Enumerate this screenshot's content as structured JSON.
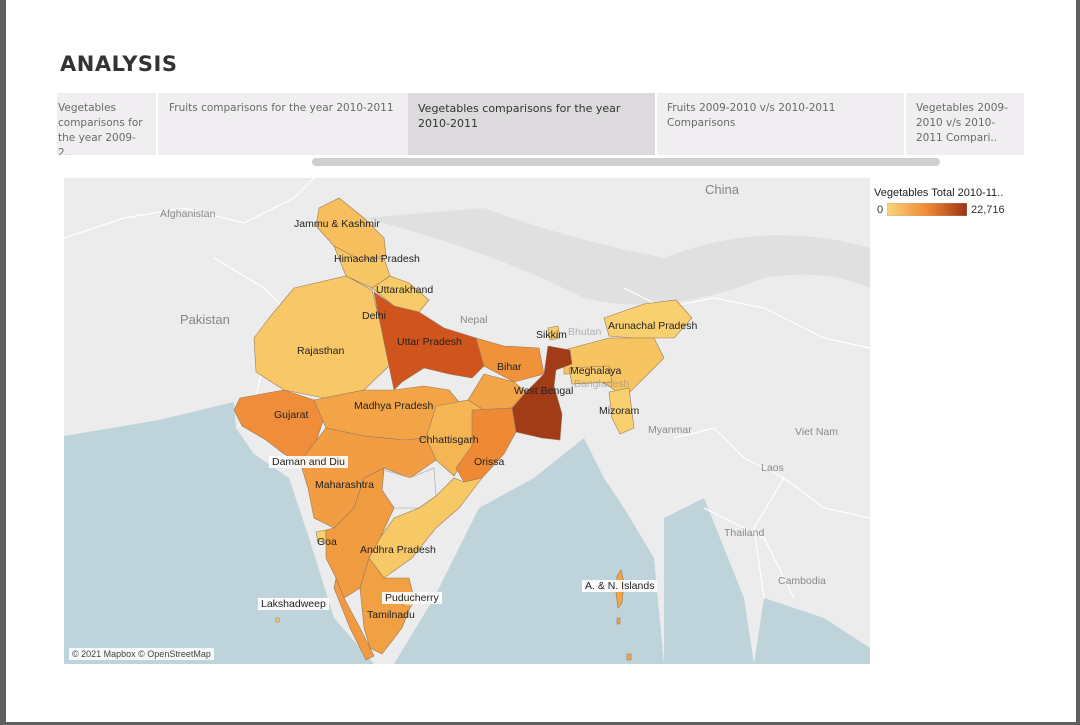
{
  "page": {
    "title": "ANALYSIS"
  },
  "tabs": [
    {
      "label": "Vegetables comparisons for the year 2009-2..",
      "active": false
    },
    {
      "label": "Fruits comparisons for the year 2010-2011",
      "active": false
    },
    {
      "label": "Vegetables comparisons for the year 2010-2011",
      "active": true
    },
    {
      "label": "Fruits 2009-2010 v/s 2010-2011 Comparisons",
      "active": false
    },
    {
      "label": "Vegetables 2009-2010 v/s 2010-2011 Compari..",
      "active": false
    }
  ],
  "legend": {
    "title": "Vegetables Total 2010-11..",
    "min": "0",
    "max": "22,716",
    "color_min": "#fbd47a",
    "color_max": "#9c3214"
  },
  "map": {
    "attribution": "© 2021 Mapbox © OpenStreetMap",
    "countries": {
      "china": "China",
      "afghanistan": "Afghanistan",
      "pakistan": "Pakistan",
      "nepal": "Nepal",
      "bhutan": "Bhutan",
      "bangladesh": "Bangladesh",
      "myanmar": "Myanmar",
      "thailand": "Thailand",
      "laos": "Laos",
      "vietnam": "Viet Nam",
      "cambodia": "Cambodia"
    },
    "states": {
      "jk": {
        "name": "Jammu & Kashmir",
        "color": "#f6be5c"
      },
      "hp": {
        "name": "Himachal Pradesh",
        "color": "#f7c765"
      },
      "uk": {
        "name": "Uttarakhand",
        "color": "#f8cb6a"
      },
      "delhi": {
        "name": "Delhi",
        "color": "#f5b956"
      },
      "rajasthan": {
        "name": "Rajasthan",
        "color": "#f8c767"
      },
      "up": {
        "name": "Uttar Pradesh",
        "color": "#d0541e"
      },
      "bihar": {
        "name": "Bihar",
        "color": "#ef923a"
      },
      "sikkim": {
        "name": "Sikkim",
        "color": "#f8cd6c"
      },
      "arunachal": {
        "name": "Arunachal Pradesh",
        "color": "#f9d070"
      },
      "assam": {
        "name": "",
        "color": "#f7c462"
      },
      "meghalaya": {
        "name": "Meghalaya",
        "color": "#f8cd6c"
      },
      "wb": {
        "name": "West Bengal",
        "color": "#a23b17"
      },
      "mizoram": {
        "name": "Mizoram",
        "color": "#f9d070"
      },
      "gujarat": {
        "name": "Gujarat",
        "color": "#ef8d3a"
      },
      "mp": {
        "name": "Madhya Pradesh",
        "color": "#f2a446"
      },
      "chhattisgarh": {
        "name": "Chhattisgarh",
        "color": "#f5b554"
      },
      "jharkhand": {
        "name": "",
        "color": "#f2a548"
      },
      "orissa": {
        "name": "Orissa",
        "color": "#ee8a36"
      },
      "daman": {
        "name": "Daman and Diu",
        "color": "#f9d070"
      },
      "maharashtra": {
        "name": "Maharashtra",
        "color": "#f29d43"
      },
      "goa": {
        "name": "Goa",
        "color": "#f9d070"
      },
      "ap": {
        "name": "Andhra Pradesh",
        "color": "#f7c866"
      },
      "karnataka": {
        "name": "",
        "color": "#f29c42"
      },
      "tamilnadu": {
        "name": "Tamilnadu",
        "color": "#f1a043"
      },
      "kerala": {
        "name": "",
        "color": "#f29a40"
      },
      "puducherry": {
        "name": "Puducherry",
        "color": "#f9d070"
      },
      "lakshadweep": {
        "name": "Lakshadweep",
        "color": "#f9d070"
      },
      "an_islands": {
        "name": "A. & N. Islands",
        "color": "#f2a446"
      }
    }
  }
}
